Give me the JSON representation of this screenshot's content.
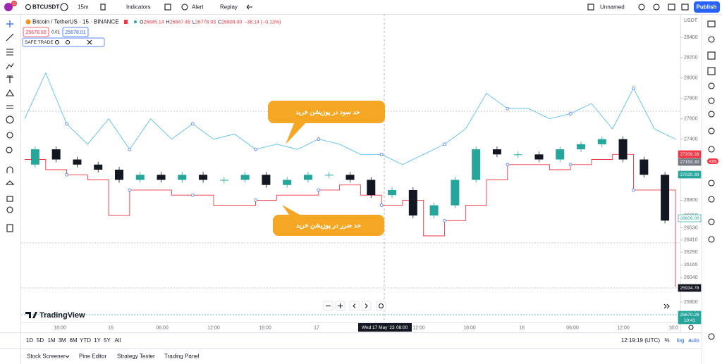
{
  "toolbar": {
    "badge": "11",
    "symbol": "BTCUSDT",
    "interval": "15m",
    "indicators": "Indicators",
    "alert": "Alert",
    "replay": "Replay",
    "layout": "Unnamed",
    "publish": "Publish"
  },
  "legend": {
    "title": "Bitcoin / TetherUS · 15 · BINANCE",
    "ohlc": [
      {
        "label": "O",
        "value": "26845.14"
      },
      {
        "label": "H",
        "value": "26847.48"
      },
      {
        "label": "L",
        "value": "26778.93"
      },
      {
        "label": "C",
        "value": "26809.00"
      }
    ],
    "change": "−36.14 (−0.13%)",
    "sell": "25678.00",
    "spread": "0.01",
    "buy": "25678.01",
    "indicator": "SAFE TRADE"
  },
  "chart": {
    "currency": "USDT",
    "ylim": [
      25600,
      28600
    ],
    "yticks": [
      28400,
      28200,
      28000,
      27800,
      27600,
      27400,
      26800,
      26650,
      26530,
      26410,
      26290,
      26165,
      26040,
      25800
    ],
    "price": [
      27150,
      27300,
      27200,
      27150,
      27100,
      27000,
      27050,
      27000,
      27050,
      27000,
      27000,
      27050,
      26950,
      27000,
      27050,
      27050,
      27000,
      26850,
      26900,
      26650,
      26750,
      27000,
      27300,
      27250,
      27250,
      27200,
      27300,
      27350,
      27400,
      27200,
      27050,
      26600
    ],
    "upper": [
      27600,
      28050,
      27550,
      27350,
      27600,
      27300,
      27600,
      27400,
      27550,
      27400,
      27450,
      27300,
      27350,
      27300,
      27400,
      27350,
      27250,
      27250,
      27150,
      27250,
      27350,
      27500,
      27850,
      27700,
      27700,
      27600,
      27650,
      27750,
      27500,
      27900,
      27500,
      27400
    ],
    "lower": [
      27200,
      27100,
      27050,
      27000,
      26650,
      26900,
      26900,
      26850,
      26850,
      26750,
      26750,
      26800,
      26850,
      26850,
      26900,
      26950,
      26850,
      26750,
      26800,
      26450,
      26600,
      26750,
      27000,
      27150,
      27150,
      27100,
      27150,
      27200,
      27250,
      26900,
      26900,
      25950
    ],
    "time_labels": [
      "18:00",
      "16",
      "06:00",
      "12:00",
      "18:00",
      "17",
      "12:00",
      "18:00",
      "18",
      "06:00",
      "12:00",
      "18:0"
    ],
    "crosshair_time": "Wed 17 May '23",
    "crosshair_clock": "08:00",
    "price_labels": [
      "27209.28",
      "27153.30",
      "27020.39",
      "26606.00",
      "25934.78",
      "25670.26",
      "10:41"
    ],
    "annotations": [
      "حد سود در پوزیشن خرید",
      "حد ضرر در پوزیشن خرید"
    ],
    "logo": "TradingView"
  },
  "timeframes": [
    "1D",
    "5D",
    "1M",
    "3M",
    "6M",
    "YTD",
    "1Y",
    "5Y",
    "All"
  ],
  "clock": "12:19:19 (UTC)",
  "scale_options": [
    "%",
    "log",
    "auto"
  ],
  "tabs": [
    "Stock Screener",
    "Pine Editor",
    "Strategy Tester",
    "Trading Panel"
  ],
  "side_badge": "4385"
}
